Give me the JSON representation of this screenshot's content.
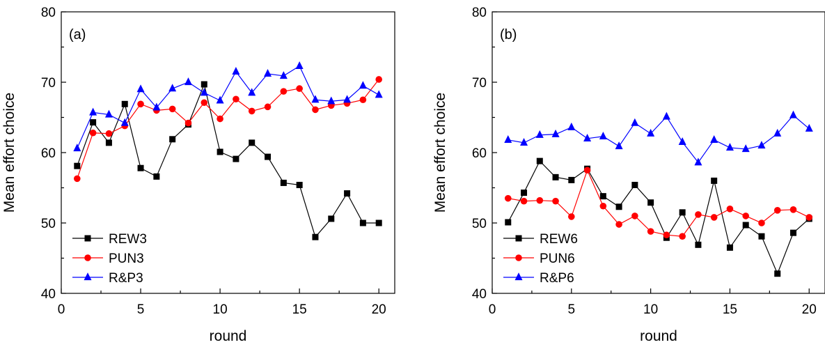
{
  "chart_data": [
    {
      "type": "line",
      "panel_label": "(a)",
      "xlabel": "round",
      "ylabel": "Mean effort choice",
      "xlim": [
        0,
        21
      ],
      "ylim": [
        40,
        80
      ],
      "xticks": [
        0,
        5,
        10,
        15,
        20
      ],
      "yticks": [
        40,
        50,
        60,
        70,
        80
      ],
      "grid": false,
      "legend_position": "bottom-left",
      "x": [
        1,
        2,
        3,
        4,
        5,
        6,
        7,
        8,
        9,
        10,
        11,
        12,
        13,
        14,
        15,
        16,
        17,
        18,
        19,
        20
      ],
      "series": [
        {
          "name": "REW3",
          "color": "#000000",
          "marker": "square",
          "values": [
            58.1,
            64.3,
            61.4,
            66.9,
            57.8,
            56.6,
            61.9,
            64.0,
            69.7,
            60.1,
            59.1,
            61.4,
            59.4,
            55.7,
            55.4,
            48.0,
            50.6,
            54.2,
            50.0,
            50.0
          ]
        },
        {
          "name": "PUN3",
          "color": "#ff0000",
          "marker": "circle",
          "values": [
            56.3,
            62.8,
            62.7,
            63.8,
            66.9,
            66.0,
            66.2,
            64.2,
            67.1,
            64.8,
            67.6,
            65.9,
            66.5,
            68.7,
            69.1,
            66.1,
            66.7,
            67.0,
            67.5,
            70.4
          ]
        },
        {
          "name": "R&P3",
          "color": "#0000ff",
          "marker": "triangle",
          "values": [
            60.6,
            65.7,
            65.4,
            64.2,
            69.0,
            66.4,
            69.1,
            70.0,
            68.5,
            67.4,
            71.5,
            68.5,
            71.2,
            70.9,
            72.3,
            67.5,
            67.3,
            67.5,
            69.5,
            68.2
          ]
        }
      ]
    },
    {
      "type": "line",
      "panel_label": "(b)",
      "xlabel": "round",
      "ylabel": "Mean effort choice",
      "xlim": [
        0,
        21
      ],
      "ylim": [
        40,
        80
      ],
      "xticks": [
        0,
        5,
        10,
        15,
        20
      ],
      "yticks": [
        40,
        50,
        60,
        70,
        80
      ],
      "grid": false,
      "legend_position": "bottom-left",
      "x": [
        1,
        2,
        3,
        4,
        5,
        6,
        7,
        8,
        9,
        10,
        11,
        12,
        13,
        14,
        15,
        16,
        17,
        18,
        19,
        20
      ],
      "series": [
        {
          "name": "REW6",
          "color": "#000000",
          "marker": "square",
          "values": [
            50.1,
            54.3,
            58.8,
            56.5,
            56.1,
            57.7,
            53.8,
            52.3,
            55.4,
            52.9,
            47.9,
            51.5,
            46.9,
            56.0,
            46.5,
            49.7,
            48.1,
            42.8,
            48.6,
            50.6
          ]
        },
        {
          "name": "PUN6",
          "color": "#ff0000",
          "marker": "circle",
          "values": [
            53.5,
            53.1,
            53.2,
            53.1,
            50.9,
            57.5,
            52.4,
            49.8,
            51.0,
            48.8,
            48.3,
            48.1,
            51.2,
            50.8,
            52.0,
            51.0,
            50.0,
            51.8,
            51.9,
            50.8
          ]
        },
        {
          "name": "R&P6",
          "color": "#0000ff",
          "marker": "triangle",
          "values": [
            61.8,
            61.4,
            62.5,
            62.6,
            63.6,
            62.0,
            62.3,
            60.9,
            64.2,
            62.7,
            65.1,
            61.5,
            58.6,
            61.8,
            60.7,
            60.5,
            61.0,
            62.7,
            65.3,
            63.4
          ]
        }
      ]
    }
  ]
}
